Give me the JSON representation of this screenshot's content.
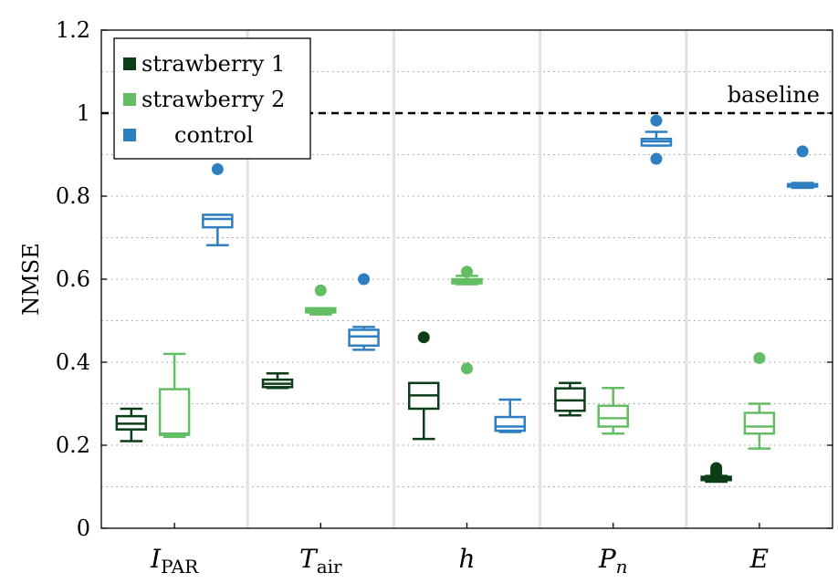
{
  "chart_data": {
    "type": "box",
    "title": "",
    "xlabel": "",
    "ylabel": "NMSE",
    "ylim": [
      0,
      1.2
    ],
    "y_ticks": [
      "0",
      "0.2",
      "0.4",
      "0.6",
      "0.8",
      "1",
      "1.2"
    ],
    "grid": "horizontal dotted at 0.1 intervals",
    "categories": [
      {
        "base": "I",
        "sub": "PAR"
      },
      {
        "base": "T",
        "sub": "air"
      },
      {
        "base": "h",
        "sub": ""
      },
      {
        "base": "P",
        "sub": "n"
      },
      {
        "base": "E",
        "sub": ""
      }
    ],
    "baseline": {
      "label": "baseline",
      "value": 1.0
    },
    "legend": {
      "placement": "top-left"
    },
    "series": [
      {
        "name": "strawberry 1",
        "color": "#0b3d17",
        "boxes": [
          {
            "whisker_low": 0.21,
            "q1": 0.238,
            "median": 0.252,
            "q3": 0.27,
            "whisker_high": 0.288,
            "outliers": []
          },
          {
            "whisker_low": 0.338,
            "q1": 0.34,
            "median": 0.348,
            "q3": 0.358,
            "whisker_high": 0.373,
            "outliers": []
          },
          {
            "whisker_low": 0.215,
            "q1": 0.288,
            "median": 0.32,
            "q3": 0.35,
            "whisker_high": 0.35,
            "outliers": [
              0.46
            ]
          },
          {
            "whisker_low": 0.272,
            "q1": 0.283,
            "median": 0.308,
            "q3": 0.337,
            "whisker_high": 0.35,
            "outliers": []
          },
          {
            "whisker_low": 0.112,
            "q1": 0.116,
            "median": 0.12,
            "q3": 0.124,
            "whisker_high": 0.126,
            "outliers": [
              0.13,
              0.135,
              0.14,
              0.145
            ]
          }
        ]
      },
      {
        "name": "strawberry 2",
        "color": "#63bd63",
        "boxes": [
          {
            "whisker_low": 0.22,
            "q1": 0.225,
            "median": 0.228,
            "q3": 0.335,
            "whisker_high": 0.42,
            "outliers": []
          },
          {
            "whisker_low": 0.515,
            "q1": 0.52,
            "median": 0.525,
            "q3": 0.53,
            "whisker_high": 0.53,
            "outliers": [
              0.573
            ]
          },
          {
            "whisker_low": 0.588,
            "q1": 0.59,
            "median": 0.595,
            "q3": 0.6,
            "whisker_high": 0.608,
            "outliers": [
              0.385,
              0.618
            ]
          },
          {
            "whisker_low": 0.228,
            "q1": 0.245,
            "median": 0.265,
            "q3": 0.295,
            "whisker_high": 0.338,
            "outliers": []
          },
          {
            "whisker_low": 0.192,
            "q1": 0.228,
            "median": 0.245,
            "q3": 0.278,
            "whisker_high": 0.3,
            "outliers": [
              0.41
            ]
          }
        ]
      },
      {
        "name": "control",
        "color": "#2e7fc2",
        "boxes": [
          {
            "whisker_low": 0.682,
            "q1": 0.725,
            "median": 0.745,
            "q3": 0.755,
            "whisker_high": 0.755,
            "outliers": [
              0.865
            ]
          },
          {
            "whisker_low": 0.43,
            "q1": 0.44,
            "median": 0.462,
            "q3": 0.478,
            "whisker_high": 0.485,
            "outliers": [
              0.6
            ]
          },
          {
            "whisker_low": 0.232,
            "q1": 0.235,
            "median": 0.245,
            "q3": 0.268,
            "whisker_high": 0.31,
            "outliers": []
          },
          {
            "whisker_low": 0.922,
            "q1": 0.922,
            "median": 0.932,
            "q3": 0.938,
            "whisker_high": 0.955,
            "outliers": [
              0.89,
              0.982
            ]
          },
          {
            "whisker_low": 0.82,
            "q1": 0.823,
            "median": 0.826,
            "q3": 0.829,
            "whisker_high": 0.832,
            "outliers": [
              0.908
            ]
          }
        ]
      }
    ]
  }
}
